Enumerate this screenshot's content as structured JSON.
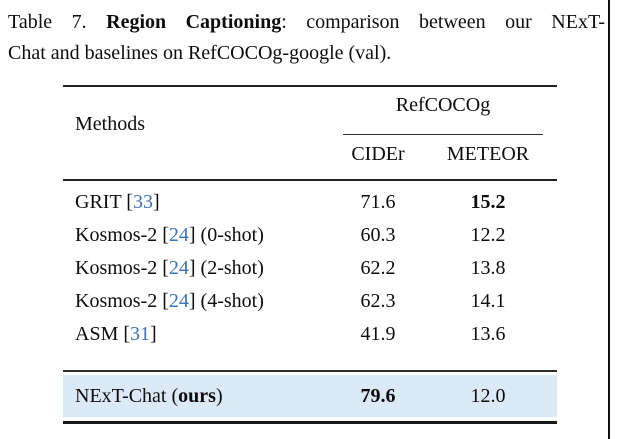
{
  "caption": {
    "prefix": "Table 7.",
    "bold": "Region Captioning",
    "rest_line1": ": comparison between our NExT-",
    "line2": "Chat and baselines on RefCOCOg-google (val)."
  },
  "table": {
    "col_methods": "Methods",
    "group_header": "RefCOCOg",
    "col_cider": "CIDEr",
    "col_meteor": "METEOR",
    "rows": [
      {
        "pre": "GRIT [",
        "cite": "33",
        "bold": "",
        "post": "]",
        "cider": "71.6",
        "meteor": "15.2",
        "cider_bold": false,
        "meteor_bold": true,
        "highlight": false
      },
      {
        "pre": "Kosmos-2 [",
        "cite": "24",
        "bold": "",
        "post": "] (0-shot)",
        "cider": "60.3",
        "meteor": "12.2",
        "cider_bold": false,
        "meteor_bold": false,
        "highlight": false
      },
      {
        "pre": "Kosmos-2 [",
        "cite": "24",
        "bold": "",
        "post": "] (2-shot)",
        "cider": "62.2",
        "meteor": "13.8",
        "cider_bold": false,
        "meteor_bold": false,
        "highlight": false
      },
      {
        "pre": "Kosmos-2 [",
        "cite": "24",
        "bold": "",
        "post": "] (4-shot)",
        "cider": "62.3",
        "meteor": "14.1",
        "cider_bold": false,
        "meteor_bold": false,
        "highlight": false
      },
      {
        "pre": "ASM [",
        "cite": "31",
        "bold": "",
        "post": "]",
        "cider": "41.9",
        "meteor": "13.6",
        "cider_bold": false,
        "meteor_bold": false,
        "highlight": false
      },
      {
        "pre": "NExT-Chat (",
        "cite": "",
        "bold": "ours",
        "post": ")",
        "cider": "79.6",
        "meteor": "12.0",
        "cider_bold": true,
        "meteor_bold": false,
        "highlight": true
      }
    ]
  },
  "colors": {
    "citation_link": "#3b72b8",
    "highlight_row_bg": "#dce9f7",
    "rule": "#222222"
  }
}
